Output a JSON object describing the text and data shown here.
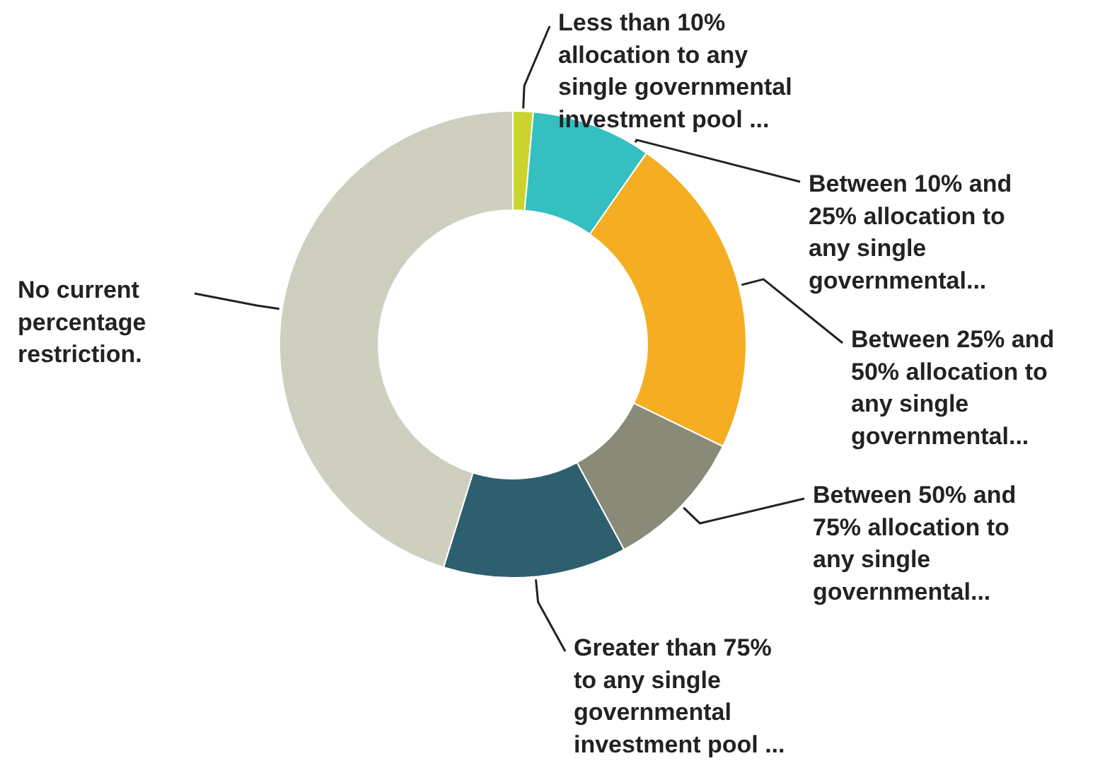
{
  "chart_data": {
    "type": "donut",
    "categories": [
      "Less than 10%\nallocation to any\nsingle governmental\ninvestment pool ...",
      "Between 10% and\n25% allocation to\nany single\ngovernmental...",
      "Between 25% and\n50% allocation to\nany single\ngovernmental...",
      "Between 50% and\n75% allocation to\nany single\ngovernmental...",
      "Greater than 75%\nto any single\ngovernmental\ninvestment pool ...",
      "No current\npercentage\nrestriction."
    ],
    "values": [
      1.4,
      8.3,
      22.5,
      9.9,
      12.7,
      45.2
    ],
    "colors": [
      "#c9d52e",
      "#35bfc1",
      "#f5ae22",
      "#8a8a78",
      "#2e5f6e",
      "#cfcfc0"
    ]
  }
}
